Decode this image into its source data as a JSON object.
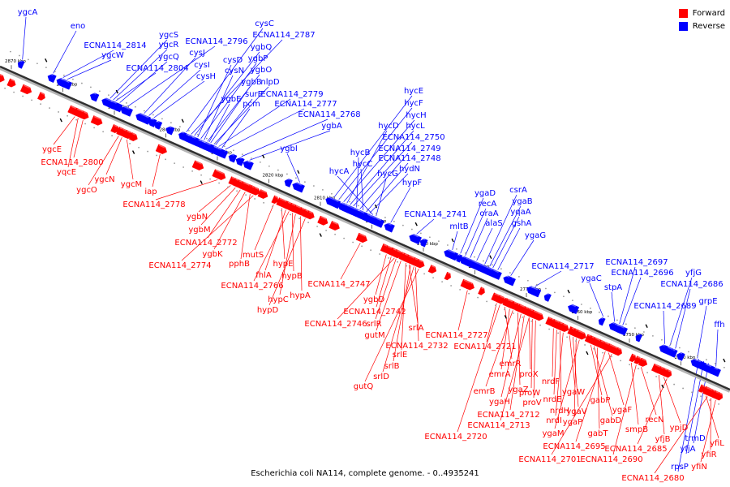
{
  "title": "Escherichia coli NA114, complete genome. - 0..4935241",
  "legend": {
    "forward": {
      "label": "Forward",
      "color": "#ff0000"
    },
    "reverse": {
      "label": "Reverse",
      "color": "#0000ff"
    }
  },
  "axis_ticks": [
    "2870 kbp",
    "2860 kbp",
    "2850 kbp",
    "2840 kbp",
    "2830 kbp",
    "2820 kbp",
    "2810 kbp",
    "2800 kbp",
    "2790 kbp",
    "2780 kbp",
    "2770 kbp",
    "2760 kbp",
    "2750 kbp",
    "2740 kbp"
  ],
  "reverse_genes": [
    {
      "name": "ygcA",
      "lx": 34,
      "ly": 18,
      "gx": 20
    },
    {
      "name": "eno",
      "lx": 96,
      "ly": 35,
      "gx": 58
    },
    {
      "name": "ECNA114_2814",
      "lx": 142,
      "ly": 59,
      "gx": 70
    },
    {
      "name": "ygcW",
      "lx": 139,
      "ly": 71,
      "gx": 75
    },
    {
      "name": "ygcS",
      "lx": 208,
      "ly": 46,
      "gx": 128
    },
    {
      "name": "ygcR",
      "lx": 208,
      "ly": 58,
      "gx": 132
    },
    {
      "name": "ygcQ",
      "lx": 208,
      "ly": 73,
      "gx": 140
    },
    {
      "name": "ECNA114_2804",
      "lx": 194,
      "ly": 87,
      "gx": 135
    },
    {
      "name": "ECNA114_2796",
      "lx": 267,
      "ly": 54,
      "gx": 150
    },
    {
      "name": "cysJ",
      "lx": 243,
      "ly": 68,
      "gx": 170
    },
    {
      "name": "cysI",
      "lx": 249,
      "ly": 83,
      "gx": 176
    },
    {
      "name": "cysH",
      "lx": 254,
      "ly": 97,
      "gx": 182
    },
    {
      "name": "cysC",
      "lx": 326,
      "ly": 32,
      "gx": 222
    },
    {
      "name": "ECNA114_2787",
      "lx": 350,
      "ly": 46,
      "gx": 228
    },
    {
      "name": "ygbQ",
      "lx": 322,
      "ly": 61,
      "gx": 232
    },
    {
      "name": "cysD",
      "lx": 287,
      "ly": 77,
      "gx": 236
    },
    {
      "name": "ygbP",
      "lx": 318,
      "ly": 75,
      "gx": 240
    },
    {
      "name": "cysN",
      "lx": 289,
      "ly": 90,
      "gx": 244
    },
    {
      "name": "ygbO",
      "lx": 322,
      "ly": 89,
      "gx": 248
    },
    {
      "name": "ygbB",
      "lx": 310,
      "ly": 104,
      "gx": 252
    },
    {
      "name": "nlpD",
      "lx": 333,
      "ly": 104,
      "gx": 256
    },
    {
      "name": "surE",
      "lx": 313,
      "ly": 119,
      "gx": 258
    },
    {
      "name": "ECNA114_2779",
      "lx": 360,
      "ly": 119,
      "gx": 262
    },
    {
      "name": "ygbE",
      "lx": 285,
      "ly": 125,
      "gx": 250
    },
    {
      "name": "pcm",
      "lx": 310,
      "ly": 131,
      "gx": 266
    },
    {
      "name": "ECNA114_2777",
      "lx": 377,
      "ly": 131,
      "gx": 270
    },
    {
      "name": "ECNA114_2768",
      "lx": 406,
      "ly": 144,
      "gx": 290
    },
    {
      "name": "ygbA",
      "lx": 409,
      "ly": 158,
      "gx": 300
    },
    {
      "name": "ygbI",
      "lx": 356,
      "ly": 186,
      "gx": 362
    },
    {
      "name": "hycE",
      "lx": 510,
      "ly": 115,
      "gx": 404
    },
    {
      "name": "hycF",
      "lx": 510,
      "ly": 130,
      "gx": 410
    },
    {
      "name": "hycH",
      "lx": 513,
      "ly": 145,
      "gx": 416
    },
    {
      "name": "hycD",
      "lx": 479,
      "ly": 158,
      "gx": 420
    },
    {
      "name": "hycL",
      "lx": 512,
      "ly": 158,
      "gx": 424
    },
    {
      "name": "ECNA114_2750",
      "lx": 510,
      "ly": 172,
      "gx": 428
    },
    {
      "name": "hycB",
      "lx": 444,
      "ly": 191,
      "gx": 432
    },
    {
      "name": "ECNA114_2749",
      "lx": 505,
      "ly": 186,
      "gx": 436
    },
    {
      "name": "hycC",
      "lx": 447,
      "ly": 205,
      "gx": 440
    },
    {
      "name": "ECNA114_2748",
      "lx": 505,
      "ly": 198,
      "gx": 444
    },
    {
      "name": "hydN",
      "lx": 505,
      "ly": 211,
      "gx": 448
    },
    {
      "name": "hycA",
      "lx": 418,
      "ly": 214,
      "gx": 452
    },
    {
      "name": "hycG",
      "lx": 478,
      "ly": 217,
      "gx": 456
    },
    {
      "name": "hypF",
      "lx": 508,
      "ly": 228,
      "gx": 474
    },
    {
      "name": "ECNA114_2741",
      "lx": 537,
      "ly": 267,
      "gx": 506
    },
    {
      "name": "mltB",
      "lx": 566,
      "ly": 282,
      "gx": 550
    },
    {
      "name": "ygaD",
      "lx": 598,
      "ly": 241,
      "gx": 560
    },
    {
      "name": "recA",
      "lx": 601,
      "ly": 254,
      "gx": 566
    },
    {
      "name": "oraA",
      "lx": 603,
      "ly": 266,
      "gx": 572
    },
    {
      "name": "alaS",
      "lx": 609,
      "ly": 278,
      "gx": 580
    },
    {
      "name": "csrA",
      "lx": 639,
      "ly": 237,
      "gx": 590
    },
    {
      "name": "ygaB",
      "lx": 644,
      "ly": 251,
      "gx": 596
    },
    {
      "name": "yqaA",
      "lx": 642,
      "ly": 264,
      "gx": 600
    },
    {
      "name": "gshA",
      "lx": 643,
      "ly": 278,
      "gx": 606
    },
    {
      "name": "ygaG",
      "lx": 660,
      "ly": 293,
      "gx": 622
    },
    {
      "name": "ECNA114_2717",
      "lx": 694,
      "ly": 331,
      "gx": 652
    },
    {
      "name": "ygaC",
      "lx": 729,
      "ly": 346,
      "gx": 736
    },
    {
      "name": "stpA",
      "lx": 756,
      "ly": 357,
      "gx": 750
    },
    {
      "name": "ECNA114_2697",
      "lx": 785,
      "ly": 326,
      "gx": 756
    },
    {
      "name": "ECNA114_2696",
      "lx": 792,
      "ly": 339,
      "gx": 760
    },
    {
      "name": "yfjG",
      "lx": 855,
      "ly": 339,
      "gx": 818
    },
    {
      "name": "ECNA114_2686",
      "lx": 853,
      "ly": 353,
      "gx": 825
    },
    {
      "name": "ECNA114_2689",
      "lx": 820,
      "ly": 380,
      "gx": 812
    },
    {
      "name": "grpE",
      "lx": 873,
      "ly": 374,
      "gx": 852
    },
    {
      "name": "ffh",
      "lx": 887,
      "ly": 403,
      "gx": 875
    },
    {
      "name": "trmD",
      "lx": 857,
      "ly": 543,
      "gx": 866
    },
    {
      "name": "yfjA",
      "lx": 848,
      "ly": 556,
      "gx": 860
    },
    {
      "name": "rpsP",
      "lx": 838,
      "ly": 578,
      "gx": 854
    }
  ],
  "forward_genes": [
    {
      "name": "ygcE",
      "lx": 64,
      "ly": 187,
      "gx": 100
    },
    {
      "name": "ECNA114_2800",
      "lx": 89,
      "ly": 203,
      "gx": 110
    },
    {
      "name": "yqcE",
      "lx": 82,
      "ly": 215,
      "gx": 104
    },
    {
      "name": "ygcN",
      "lx": 129,
      "ly": 224,
      "gx": 158
    },
    {
      "name": "ygcO",
      "lx": 107,
      "ly": 237,
      "gx": 154
    },
    {
      "name": "ygcM",
      "lx": 162,
      "ly": 230,
      "gx": 164
    },
    {
      "name": "iap",
      "lx": 186,
      "ly": 239,
      "gx": 205
    },
    {
      "name": "ECNA114_2778",
      "lx": 190,
      "ly": 255,
      "gx": 276
    },
    {
      "name": "ygbN",
      "lx": 243,
      "ly": 270,
      "gx": 292
    },
    {
      "name": "ygbM",
      "lx": 246,
      "ly": 286,
      "gx": 298
    },
    {
      "name": "ECNA114_2772",
      "lx": 254,
      "ly": 302,
      "gx": 304
    },
    {
      "name": "ygbK",
      "lx": 262,
      "ly": 316,
      "gx": 310
    },
    {
      "name": "mutS",
      "lx": 312,
      "ly": 317,
      "gx": 345
    },
    {
      "name": "pphB",
      "lx": 295,
      "ly": 328,
      "gx": 316
    },
    {
      "name": "ECNA114_2774",
      "lx": 222,
      "ly": 330,
      "gx": 320
    },
    {
      "name": "hypE",
      "lx": 349,
      "ly": 328,
      "gx": 355
    },
    {
      "name": "fhlA",
      "lx": 325,
      "ly": 342,
      "gx": 360
    },
    {
      "name": "hypB",
      "lx": 360,
      "ly": 343,
      "gx": 368
    },
    {
      "name": "ECNA114_2766",
      "lx": 311,
      "ly": 355,
      "gx": 364
    },
    {
      "name": "hypC",
      "lx": 343,
      "ly": 372,
      "gx": 372
    },
    {
      "name": "hypA",
      "lx": 370,
      "ly": 367,
      "gx": 378
    },
    {
      "name": "hypD",
      "lx": 330,
      "ly": 385,
      "gx": 384
    },
    {
      "name": "ECNA114_2747",
      "lx": 418,
      "ly": 353,
      "gx": 452
    },
    {
      "name": "ygbD",
      "lx": 461,
      "ly": 372,
      "gx": 484
    },
    {
      "name": "ECNA114_2742",
      "lx": 462,
      "ly": 387,
      "gx": 490
    },
    {
      "name": "srlR",
      "lx": 461,
      "ly": 402,
      "gx": 496
    },
    {
      "name": "ECNA114_2746",
      "lx": 414,
      "ly": 402,
      "gx": 494
    },
    {
      "name": "srlA",
      "lx": 513,
      "ly": 407,
      "gx": 512
    },
    {
      "name": "gutM",
      "lx": 462,
      "ly": 416,
      "gx": 502
    },
    {
      "name": "ECNA114_2732",
      "lx": 514,
      "ly": 429,
      "gx": 520
    },
    {
      "name": "srlE",
      "lx": 493,
      "ly": 440,
      "gx": 508
    },
    {
      "name": "srlB",
      "lx": 483,
      "ly": 454,
      "gx": 514
    },
    {
      "name": "srlD",
      "lx": 470,
      "ly": 467,
      "gx": 518
    },
    {
      "name": "gutQ",
      "lx": 448,
      "ly": 479,
      "gx": 524
    },
    {
      "name": "ECNA114_2727",
      "lx": 563,
      "ly": 416,
      "gx": 584
    },
    {
      "name": "ECNA114_2721",
      "lx": 598,
      "ly": 430,
      "gx": 620
    },
    {
      "name": "emrR",
      "lx": 629,
      "ly": 451,
      "gx": 630
    },
    {
      "name": "emrA",
      "lx": 616,
      "ly": 464,
      "gx": 636
    },
    {
      "name": "proX",
      "lx": 652,
      "ly": 464,
      "gx": 660
    },
    {
      "name": "nrdF",
      "lx": 679,
      "ly": 473,
      "gx": 690
    },
    {
      "name": "emrB",
      "lx": 597,
      "ly": 485,
      "gx": 640
    },
    {
      "name": "ygaZ",
      "lx": 639,
      "ly": 483,
      "gx": 646
    },
    {
      "name": "proW",
      "lx": 653,
      "ly": 487,
      "gx": 664
    },
    {
      "name": "nrdE",
      "lx": 681,
      "ly": 495,
      "gx": 694
    },
    {
      "name": "ygaW",
      "lx": 707,
      "ly": 486,
      "gx": 710
    },
    {
      "name": "gabP",
      "lx": 740,
      "ly": 496,
      "gx": 736
    },
    {
      "name": "ygaH",
      "lx": 616,
      "ly": 498,
      "gx": 650
    },
    {
      "name": "proV",
      "lx": 656,
      "ly": 499,
      "gx": 668
    },
    {
      "name": "ECNA114_2712",
      "lx": 627,
      "ly": 514,
      "gx": 654
    },
    {
      "name": "nrdH",
      "lx": 690,
      "ly": 509,
      "gx": 698
    },
    {
      "name": "ygaV",
      "lx": 711,
      "ly": 510,
      "gx": 714
    },
    {
      "name": "ygaF",
      "lx": 767,
      "ly": 508,
      "gx": 758
    },
    {
      "name": "ECNA114_2713",
      "lx": 615,
      "ly": 527,
      "gx": 660
    },
    {
      "name": "nrdI",
      "lx": 683,
      "ly": 521,
      "gx": 702
    },
    {
      "name": "ygaP",
      "lx": 706,
      "ly": 523,
      "gx": 718
    },
    {
      "name": "gabD",
      "lx": 753,
      "ly": 521,
      "gx": 740
    },
    {
      "name": "recN",
      "lx": 807,
      "ly": 520,
      "gx": 798
    },
    {
      "name": "ECNA114_2720",
      "lx": 562,
      "ly": 541,
      "gx": 624
    },
    {
      "name": "ygaM",
      "lx": 682,
      "ly": 537,
      "gx": 722
    },
    {
      "name": "gabT",
      "lx": 737,
      "ly": 537,
      "gx": 744
    },
    {
      "name": "smpB",
      "lx": 785,
      "ly": 532,
      "gx": 786
    },
    {
      "name": "ypjD",
      "lx": 837,
      "ly": 530,
      "gx": 826
    },
    {
      "name": "yfjB",
      "lx": 817,
      "ly": 544,
      "gx": 820
    },
    {
      "name": "ECNA114_2695",
      "lx": 708,
      "ly": 553,
      "gx": 754
    },
    {
      "name": "ECNA114_2685",
      "lx": 784,
      "ly": 556,
      "gx": 830
    },
    {
      "name": "yfiL",
      "lx": 884,
      "ly": 549,
      "gx": 878
    },
    {
      "name": "yfiR",
      "lx": 874,
      "ly": 563,
      "gx": 884
    },
    {
      "name": "ECNA114_2701",
      "lx": 678,
      "ly": 569,
      "gx": 762
    },
    {
      "name": "ECNA114_2690",
      "lx": 754,
      "ly": 569,
      "gx": 792
    },
    {
      "name": "yfiN",
      "lx": 862,
      "ly": 578,
      "gx": 890
    },
    {
      "name": "ECNA114_2680",
      "lx": 805,
      "ly": 592,
      "gx": 880
    }
  ]
}
